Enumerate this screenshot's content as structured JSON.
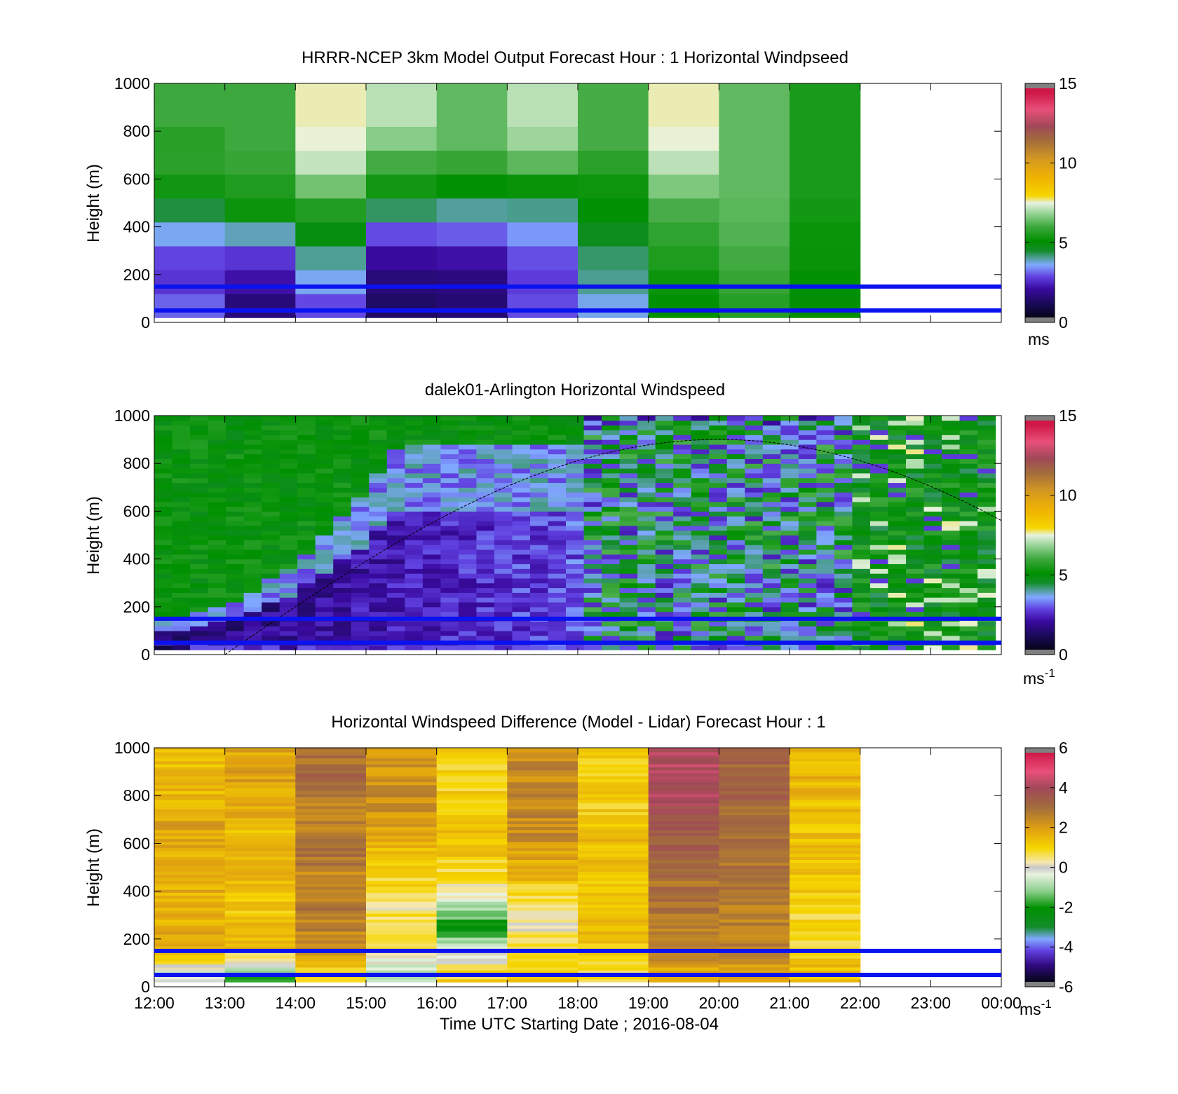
{
  "figure": {
    "xlabel": "Time UTC  Starting Date ; 2016-08-04"
  },
  "chart_data": [
    {
      "type": "heatmap",
      "title": "HRRR-NCEP 3km Model Output   Forecast Hour : 1 Horizontal Windpseed",
      "ylabel": "Height (m)",
      "xlim": [
        "12:00",
        "00:00"
      ],
      "ylim": [
        0,
        1000
      ],
      "yticks": [
        "0",
        "200",
        "400",
        "600",
        "800",
        "1000"
      ],
      "colorbar": {
        "ticks": [
          "0",
          "5",
          "10",
          "15"
        ],
        "range": [
          0,
          15
        ],
        "unit": "ms",
        "unit_sup": ""
      },
      "reference_lines_m": [
        150,
        50
      ],
      "data_end_hour": "22:00",
      "description": "hourly model columns; speed (m/s) by height"
    },
    {
      "type": "heatmap",
      "title": "dalek01-Arlington  Horizontal Windspeed",
      "ylabel": "Height (m)",
      "xlim": [
        "12:00",
        "00:00"
      ],
      "ylim": [
        0,
        1000
      ],
      "yticks": [
        "0",
        "200",
        "400",
        "600",
        "800",
        "1000"
      ],
      "colorbar": {
        "ticks": [
          "0",
          "5",
          "10",
          "15"
        ],
        "range": [
          0,
          15
        ],
        "unit": "ms",
        "unit_sup": "-1"
      },
      "reference_lines_m": [
        150,
        50
      ],
      "data_end_hour": "23:55",
      "boundary_layer_curve": {
        "start": [
          "13:00",
          0
        ],
        "peak": [
          "20:00",
          900
        ],
        "end": [
          "00:00",
          590
        ]
      }
    },
    {
      "type": "heatmap",
      "title": "Horizontal Windspeed Difference (Model - Lidar) Forecast Hour : 1",
      "ylabel": "Height (m)",
      "xlim": [
        "12:00",
        "00:00"
      ],
      "ylim": [
        0,
        1000
      ],
      "yticks": [
        "0",
        "200",
        "400",
        "600",
        "800",
        "1000"
      ],
      "xticks": [
        "12:00",
        "13:00",
        "14:00",
        "15:00",
        "16:00",
        "17:00",
        "18:00",
        "19:00",
        "20:00",
        "21:00",
        "22:00",
        "23:00",
        "00:00"
      ],
      "colorbar": {
        "ticks": [
          "-6",
          "-4",
          "-2",
          "0",
          "2",
          "4",
          "6"
        ],
        "range": [
          -6,
          6
        ],
        "unit": "ms",
        "unit_sup": "-1"
      },
      "reference_lines_m": [
        150,
        50
      ],
      "data_end_hour": "22:00"
    }
  ],
  "model_speeds_mps": [
    [
      3.0,
      2.5,
      2.6,
      3.2,
      4.0,
      5.0,
      5.4,
      5.3,
      5.6
    ],
    [
      1.2,
      1.8,
      2.3,
      3.3,
      5.0,
      5.2,
      5.5,
      5.6,
      5.6
    ],
    [
      2.6,
      3.3,
      3.6,
      4.6,
      5.1,
      6.0,
      7.0,
      7.5,
      7.6
    ],
    [
      1.0,
      1.2,
      1.6,
      2.5,
      3.8,
      5.0,
      5.5,
      6.3,
      7.0
    ],
    [
      1.2,
      1.3,
      1.7,
      2.7,
      3.5,
      4.8,
      5.4,
      6.0,
      6.0
    ],
    [
      2.8,
      2.6,
      2.7,
      3.1,
      3.6,
      4.8,
      5.8,
      6.6,
      7.0
    ],
    [
      3.3,
      3.8,
      3.9,
      4.4,
      4.8,
      5.0,
      5.3,
      5.7,
      5.7
    ],
    [
      4.9,
      5.0,
      5.2,
      5.4,
      5.6,
      6.2,
      6.9,
      7.5,
      7.6
    ],
    [
      5.3,
      5.5,
      5.6,
      5.8,
      5.9,
      6.0,
      6.0,
      6.0,
      6.0
    ],
    [
      4.8,
      4.9,
      5.0,
      5.0,
      5.1,
      5.2,
      5.2,
      5.2,
      5.2
    ]
  ],
  "difference_mps": [
    [
      -0.5,
      1.5,
      1.8,
      1.6,
      1.8,
      1.6,
      1.9,
      1.7,
      1.5
    ],
    [
      -1.5,
      1.2,
      1.5,
      1.2,
      1.7,
      1.8,
      1.5,
      1.7,
      1.9
    ],
    [
      0.8,
      2.3,
      2.6,
      2.8,
      2.2,
      3.0,
      2.7,
      2.6,
      3.0
    ],
    [
      -1.0,
      0.3,
      0.7,
      0.5,
      1.0,
      1.3,
      2.0,
      2.3,
      2.2
    ],
    [
      1.0,
      -0.3,
      -2.2,
      -0.5,
      0.6,
      1.2,
      1.3,
      1.2,
      1.0
    ],
    [
      1.2,
      0.9,
      0.2,
      0.4,
      1.4,
      2.0,
      2.4,
      2.5,
      2.5
    ],
    [
      0.6,
      1.2,
      1.4,
      1.3,
      1.4,
      1.4,
      1.4,
      1.1,
      1.1
    ],
    [
      1.8,
      2.4,
      2.7,
      2.9,
      3.0,
      3.3,
      3.6,
      4.0,
      4.2
    ],
    [
      2.0,
      2.4,
      2.6,
      2.8,
      2.9,
      3.0,
      3.0,
      3.1,
      3.2
    ],
    [
      1.5,
      1.0,
      0.8,
      1.0,
      1.2,
      1.3,
      1.4,
      1.5,
      1.6
    ]
  ]
}
